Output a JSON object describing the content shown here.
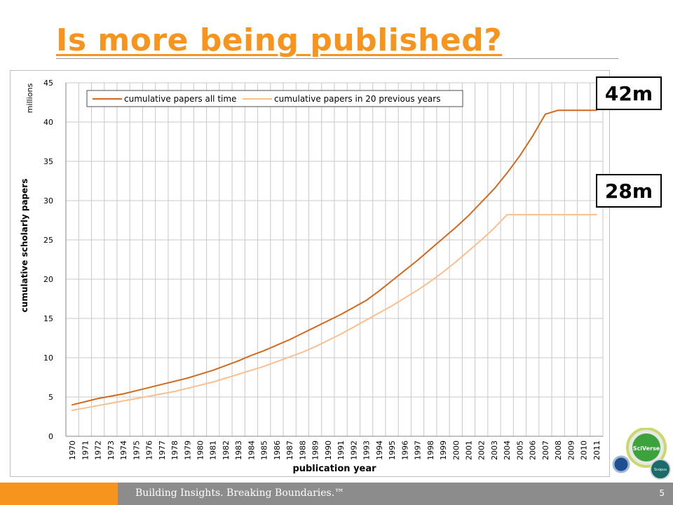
{
  "slide": {
    "title": "Is more being published?",
    "footer_tagline": "Building Insights. Breaking Boundaries.™",
    "page_number": "5",
    "accent_color": "#f7941d"
  },
  "callouts": {
    "all_time": "42m",
    "twenty_year": "28m"
  },
  "logos": {
    "sciverse": "SciVerse",
    "scopus": "Scopus"
  },
  "chart_data": {
    "type": "line",
    "title": "",
    "xlabel": "publication year",
    "ylabel": "cumulative scholarly papers",
    "yunit": "millions",
    "ylim": [
      0,
      45
    ],
    "yticks": [
      0,
      5,
      10,
      15,
      20,
      25,
      30,
      35,
      40,
      45
    ],
    "grid": true,
    "legend_position": "top",
    "categories": [
      "1970",
      "1971",
      "1972",
      "1973",
      "1974",
      "1975",
      "1976",
      "1977",
      "1978",
      "1979",
      "1980",
      "1981",
      "1982",
      "1983",
      "1984",
      "1985",
      "1986",
      "1987",
      "1988",
      "1989",
      "1990",
      "1991",
      "1992",
      "1993",
      "1994",
      "1995",
      "1996",
      "1997",
      "1998",
      "1999",
      "2000",
      "2001",
      "2002",
      "2003",
      "2004",
      "2005",
      "2006",
      "2007",
      "2008",
      "2009",
      "2010",
      "2011"
    ],
    "series": [
      {
        "name": "cumulative papers all time",
        "color": "#d2691e",
        "values": [
          4.0,
          4.4,
          4.8,
          5.1,
          5.4,
          5.8,
          6.2,
          6.6,
          7.0,
          7.4,
          7.9,
          8.4,
          9.0,
          9.6,
          10.3,
          10.9,
          11.6,
          12.3,
          13.1,
          13.9,
          14.7,
          15.5,
          16.4,
          17.3,
          18.5,
          19.8,
          21.1,
          22.4,
          23.8,
          25.2,
          26.6,
          28.1,
          29.8,
          31.5,
          33.5,
          35.7,
          38.2,
          41.0,
          41.5,
          41.5,
          41.5,
          41.5
        ]
      },
      {
        "name": "cumulative papers in 20 previous years",
        "color": "#f9bf8f",
        "values": [
          3.3,
          3.6,
          3.9,
          4.2,
          4.5,
          4.8,
          5.1,
          5.4,
          5.7,
          6.1,
          6.5,
          6.9,
          7.4,
          7.9,
          8.4,
          8.9,
          9.5,
          10.1,
          10.7,
          11.4,
          12.2,
          13.0,
          13.9,
          14.8,
          15.7,
          16.6,
          17.6,
          18.6,
          19.7,
          20.9,
          22.2,
          23.6,
          25.0,
          26.5,
          28.2,
          28.2,
          28.2,
          28.2,
          28.2,
          28.2,
          28.2,
          28.2
        ]
      }
    ]
  }
}
